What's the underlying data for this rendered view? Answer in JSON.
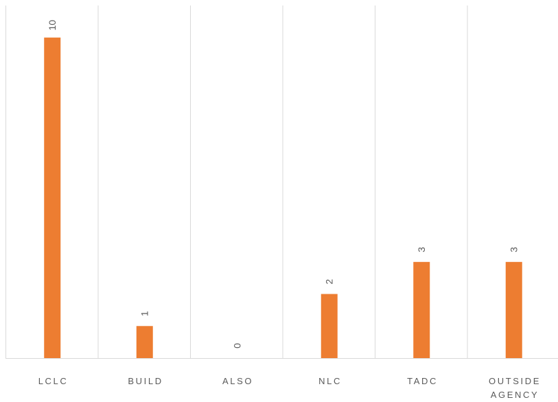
{
  "chart_data": {
    "type": "bar",
    "orientation": "vertical",
    "categories": [
      "LCLC",
      "BUILD",
      "ALSO",
      "NLC",
      "TADC",
      "OUTSIDE AGENCY"
    ],
    "category_lines": [
      [
        "LCLC"
      ],
      [
        "BUILD"
      ],
      [
        "ALSO"
      ],
      [
        "NLC"
      ],
      [
        "TADC"
      ],
      [
        "OUTSIDE",
        "AGENCY"
      ]
    ],
    "values": [
      10,
      1,
      0,
      2,
      3,
      3
    ],
    "data_labels": [
      "10",
      "1",
      "0",
      "2",
      "3",
      "3"
    ],
    "title": "",
    "xlabel": "",
    "ylabel": "",
    "ylim": [
      0,
      11
    ],
    "grid": "vertical category separators",
    "legend": "none",
    "data_label_rotation": "rotated 90 degrees, reading upward",
    "colors": {
      "bar": "#ED7D31",
      "grid": "#D9D9D9",
      "text": "#595959"
    }
  }
}
